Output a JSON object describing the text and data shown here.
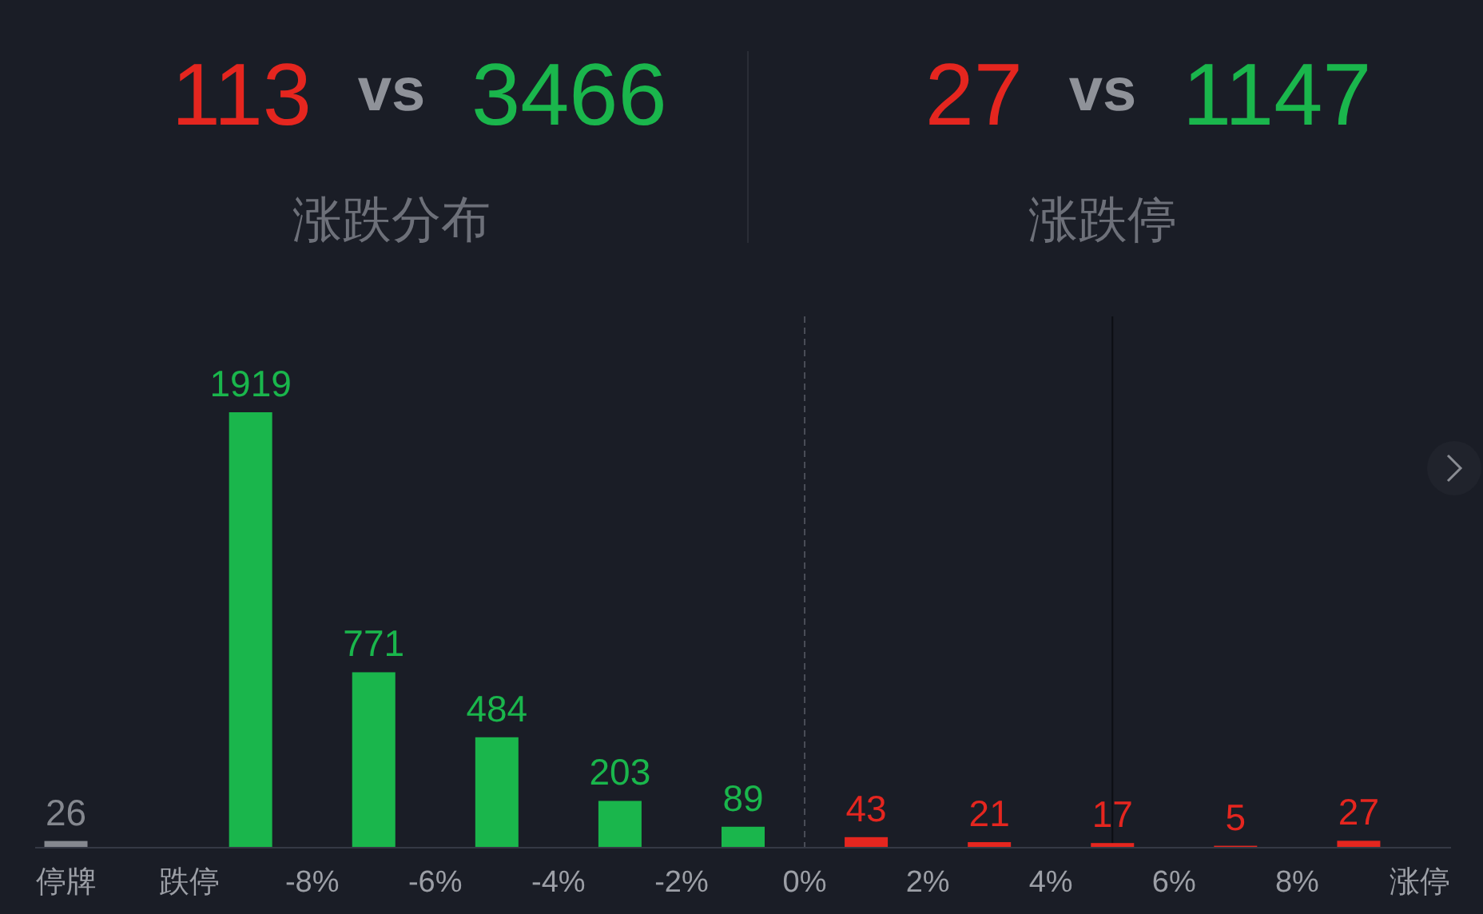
{
  "chart_data": [
    {
      "type": "other",
      "title": "涨跌分布",
      "values": [
        113,
        3466
      ],
      "colors": [
        "#e5261f",
        "#1ab64c"
      ],
      "data_labels": true,
      "annotations": [
        "vs"
      ]
    },
    {
      "type": "other",
      "title": "涨跌停",
      "values": [
        27,
        1147
      ],
      "colors": [
        "#e5261f",
        "#1ab64c"
      ],
      "data_labels": true,
      "annotations": [
        "vs"
      ]
    },
    {
      "type": "bar",
      "x": [
        -12,
        -9,
        -7,
        -5,
        -3,
        -1,
        1,
        3,
        5,
        7,
        9
      ],
      "values": [
        26,
        1919,
        771,
        484,
        203,
        89,
        43,
        21,
        17,
        5,
        27
      ],
      "colors": [
        "#85888f",
        "#1ab64c",
        "#1ab64c",
        "#1ab64c",
        "#1ab64c",
        "#1ab64c",
        "#e5261f",
        "#e5261f",
        "#e5261f",
        "#e5261f",
        "#e5261f"
      ],
      "xlim": [
        -12.5,
        10.5
      ],
      "xticks": [
        {
          "value": -12,
          "label": "停牌"
        },
        {
          "value": -10,
          "label": "跌停"
        },
        {
          "value": -8,
          "label": "-8%"
        },
        {
          "value": -6,
          "label": "-6%"
        },
        {
          "value": -4,
          "label": "-4%"
        },
        {
          "value": -2,
          "label": "-2%"
        },
        {
          "value": 0,
          "label": "0%"
        },
        {
          "value": 2,
          "label": "2%"
        },
        {
          "value": 4,
          "label": "4%"
        },
        {
          "value": 6,
          "label": "6%"
        },
        {
          "value": 8,
          "label": "8%"
        },
        {
          "value": 10,
          "label": "涨停"
        }
      ],
      "data_labels": true,
      "tick_labels": "x",
      "ref_lines": [
        {
          "axis": "x",
          "value": 0,
          "line_style": "dashed",
          "color": "#4a4e58"
        },
        {
          "axis": "x",
          "value": 5,
          "line_style": "solid",
          "color": "#0c0e13"
        }
      ]
    }
  ]
}
